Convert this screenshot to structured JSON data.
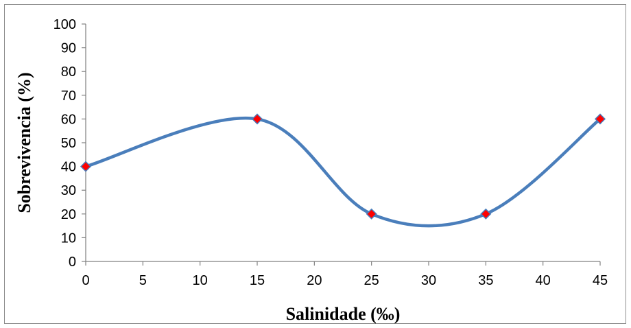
{
  "chart_data": {
    "type": "line",
    "title": "",
    "xlabel": "Salinidade (‰)",
    "ylabel": "Sobrevivencia (%)",
    "x": [
      0,
      15,
      25,
      35,
      45
    ],
    "series": [
      {
        "name": "",
        "values": [
          40,
          60,
          20,
          20,
          60
        ]
      }
    ],
    "xlim": [
      0,
      45
    ],
    "ylim": [
      0,
      100
    ],
    "xticks": [
      0,
      5,
      10,
      15,
      20,
      25,
      30,
      35,
      40,
      45
    ],
    "yticks": [
      0,
      10,
      20,
      30,
      40,
      50,
      60,
      70,
      80,
      90,
      100
    ],
    "grid": false,
    "legend": "none",
    "smooth": true,
    "colors": {
      "line": "#4a7ebb",
      "marker_fill": "#ff0000",
      "marker_stroke": "#4a7ebb",
      "axis": "#808080"
    }
  }
}
